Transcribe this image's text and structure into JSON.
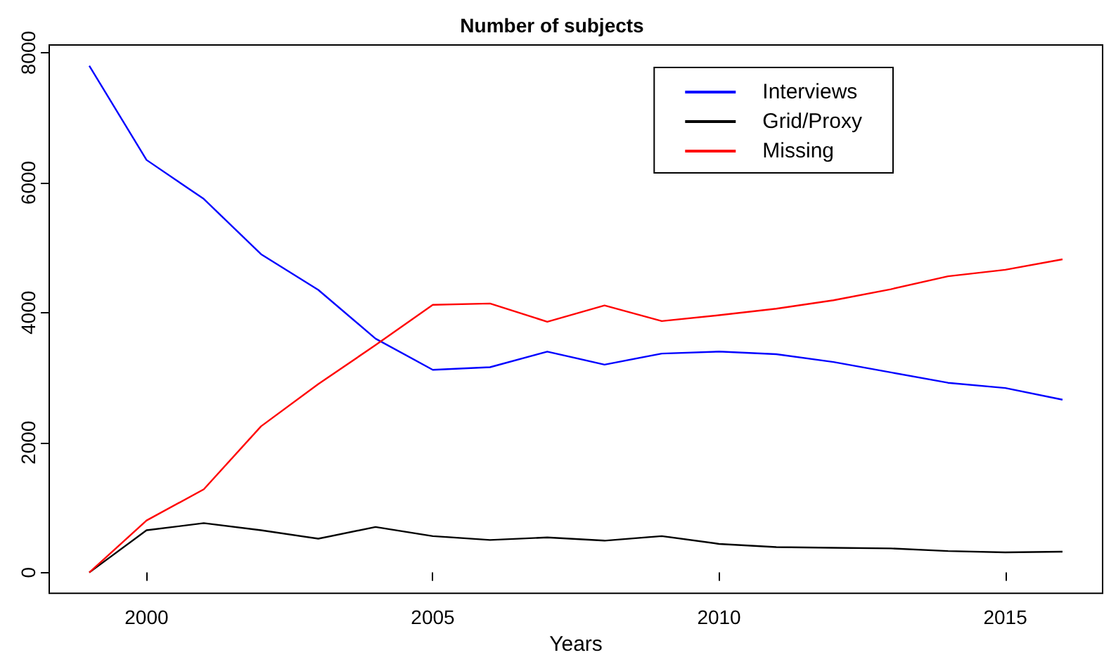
{
  "chart_data": {
    "type": "line",
    "title": "Number of subjects",
    "xlabel": "Years",
    "x": [
      1999,
      2000,
      2001,
      2002,
      2003,
      2004,
      2005,
      2006,
      2007,
      2008,
      2009,
      2010,
      2011,
      2012,
      2013,
      2014,
      2015,
      2016
    ],
    "series": [
      {
        "name": "Interviews",
        "color": "#0000ff",
        "values": [
          7800,
          6350,
          5750,
          4900,
          4350,
          3600,
          3120,
          3160,
          3400,
          3200,
          3370,
          3400,
          3360,
          3240,
          3080,
          2920,
          2840,
          2660
        ]
      },
      {
        "name": "Grid/Proxy",
        "color": "#000000",
        "values": [
          0,
          650,
          760,
          650,
          520,
          700,
          560,
          500,
          540,
          490,
          560,
          440,
          390,
          380,
          370,
          330,
          310,
          320
        ]
      },
      {
        "name": "Missing",
        "color": "#ff0000",
        "values": [
          0,
          800,
          1280,
          2250,
          2900,
          3500,
          4120,
          4140,
          3860,
          4110,
          3870,
          3960,
          4060,
          4190,
          4360,
          4560,
          4660,
          4820
        ]
      }
    ],
    "xlim": [
      1998.3,
      2016.7
    ],
    "xticks": [
      2000,
      2005,
      2010,
      2015
    ],
    "ylim": [
      -320,
      8120
    ],
    "yticks": [
      0,
      2000,
      4000,
      6000,
      8000
    ],
    "grid": false,
    "legend": "top right",
    "marker": "none",
    "line_style": "solid"
  }
}
